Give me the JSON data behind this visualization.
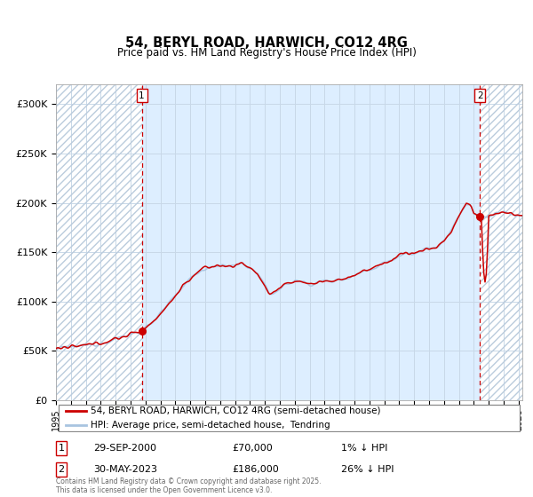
{
  "title": "54, BERYL ROAD, HARWICH, CO12 4RG",
  "subtitle": "Price paid vs. HM Land Registry's House Price Index (HPI)",
  "hpi_line_color": "#a8c4e0",
  "price_line_color": "#cc0000",
  "marker_color": "#cc0000",
  "bg_shaded_color": "#ddeeff",
  "annotation_box_color": "#cc0000",
  "sale1_date": 2000.75,
  "sale1_price": 70000,
  "sale2_date": 2023.41,
  "sale2_price": 186000,
  "legend_line1": "54, BERYL ROAD, HARWICH, CO12 4RG (semi-detached house)",
  "legend_line2": "HPI: Average price, semi-detached house,  Tendring",
  "table_row1": [
    "1",
    "29-SEP-2000",
    "£70,000",
    "1% ↓ HPI"
  ],
  "table_row2": [
    "2",
    "30-MAY-2023",
    "£186,000",
    "26% ↓ HPI"
  ],
  "footer": "Contains HM Land Registry data © Crown copyright and database right 2025.\nThis data is licensed under the Open Government Licence v3.0.",
  "ylim": [
    0,
    320000
  ],
  "yticks": [
    0,
    50000,
    100000,
    150000,
    200000,
    250000,
    300000
  ],
  "ytick_labels": [
    "£0",
    "£50K",
    "£100K",
    "£150K",
    "£200K",
    "£250K",
    "£300K"
  ],
  "xstart": 1995.0,
  "xend": 2026.25
}
